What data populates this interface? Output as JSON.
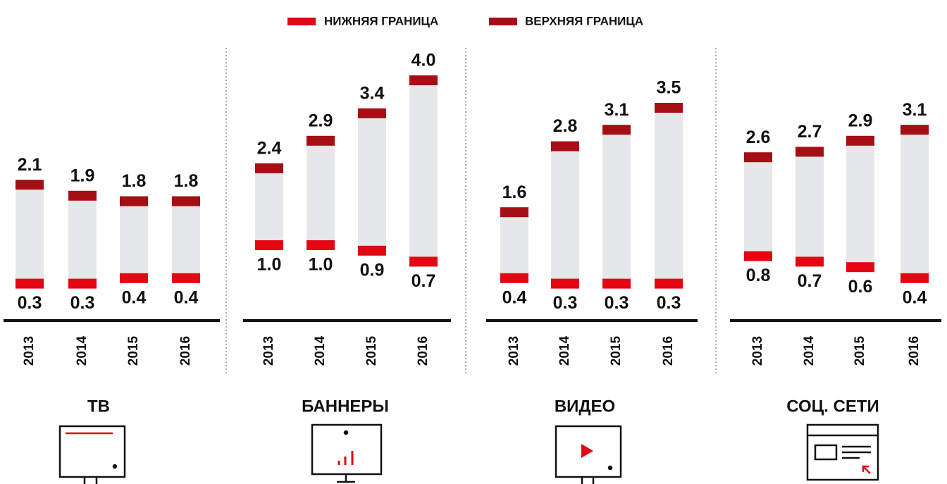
{
  "chart_data": [
    {
      "type": "bar",
      "title": "ТВ",
      "categories": [
        "2013",
        "2014",
        "2015",
        "2016"
      ],
      "series": [
        {
          "name": "НИЖНЯЯ ГРАНИЦА",
          "color": "#e30613",
          "values": [
            0.3,
            0.3,
            0.4,
            0.4
          ],
          "value_labels": [
            "0.3",
            "0.3",
            "0.4",
            "0.4"
          ]
        },
        {
          "name": "ВЕРХНЯЯ ГРАНИЦА",
          "color": "#a50e15",
          "values": [
            2.1,
            1.9,
            1.8,
            1.8
          ],
          "value_labels": [
            "2.1",
            "1.9",
            "1.8",
            "1.8"
          ]
        }
      ]
    },
    {
      "type": "bar",
      "title": "БАННЕРЫ",
      "categories": [
        "2013",
        "2014",
        "2015",
        "2016"
      ],
      "series": [
        {
          "name": "НИЖНЯЯ ГРАНИЦА",
          "color": "#e30613",
          "values": [
            1.0,
            1.0,
            0.9,
            0.7
          ],
          "value_labels": [
            "1.0",
            "1.0",
            "0.9",
            "0.7"
          ]
        },
        {
          "name": "ВЕРХНЯЯ ГРАНИЦА",
          "color": "#a50e15",
          "values": [
            2.4,
            2.9,
            3.4,
            4.0
          ],
          "value_labels": [
            "2.4",
            "2.9",
            "3.4",
            "4.0"
          ]
        }
      ]
    },
    {
      "type": "bar",
      "title": "ВИДЕО",
      "categories": [
        "2013",
        "2014",
        "2015",
        "2016"
      ],
      "series": [
        {
          "name": "НИЖНЯЯ ГРАНИЦА",
          "color": "#e30613",
          "values": [
            0.4,
            0.3,
            0.3,
            0.3
          ],
          "value_labels": [
            "0.4",
            "0.3",
            "0.3",
            "0.3"
          ]
        },
        {
          "name": "ВЕРХНЯЯ ГРАНИЦА",
          "color": "#a50e15",
          "values": [
            1.6,
            2.8,
            3.1,
            3.5
          ],
          "value_labels": [
            "1.6",
            "2.8",
            "3.1",
            "3.5"
          ]
        }
      ]
    },
    {
      "type": "bar",
      "title": "СОЦ. СЕТИ",
      "categories": [
        "2013",
        "2014",
        "2015",
        "2016"
      ],
      "series": [
        {
          "name": "НИЖНЯЯ ГРАНИЦА",
          "color": "#e30613",
          "values": [
            0.8,
            0.7,
            0.6,
            0.4
          ],
          "value_labels": [
            "0.8",
            "0.7",
            "0.6",
            "0.4"
          ]
        },
        {
          "name": "ВЕРХНЯЯ ГРАНИЦА",
          "color": "#a50e15",
          "values": [
            2.6,
            2.7,
            2.9,
            3.1
          ],
          "value_labels": [
            "2.6",
            "2.7",
            "2.9",
            "3.1"
          ]
        }
      ]
    }
  ]
}
